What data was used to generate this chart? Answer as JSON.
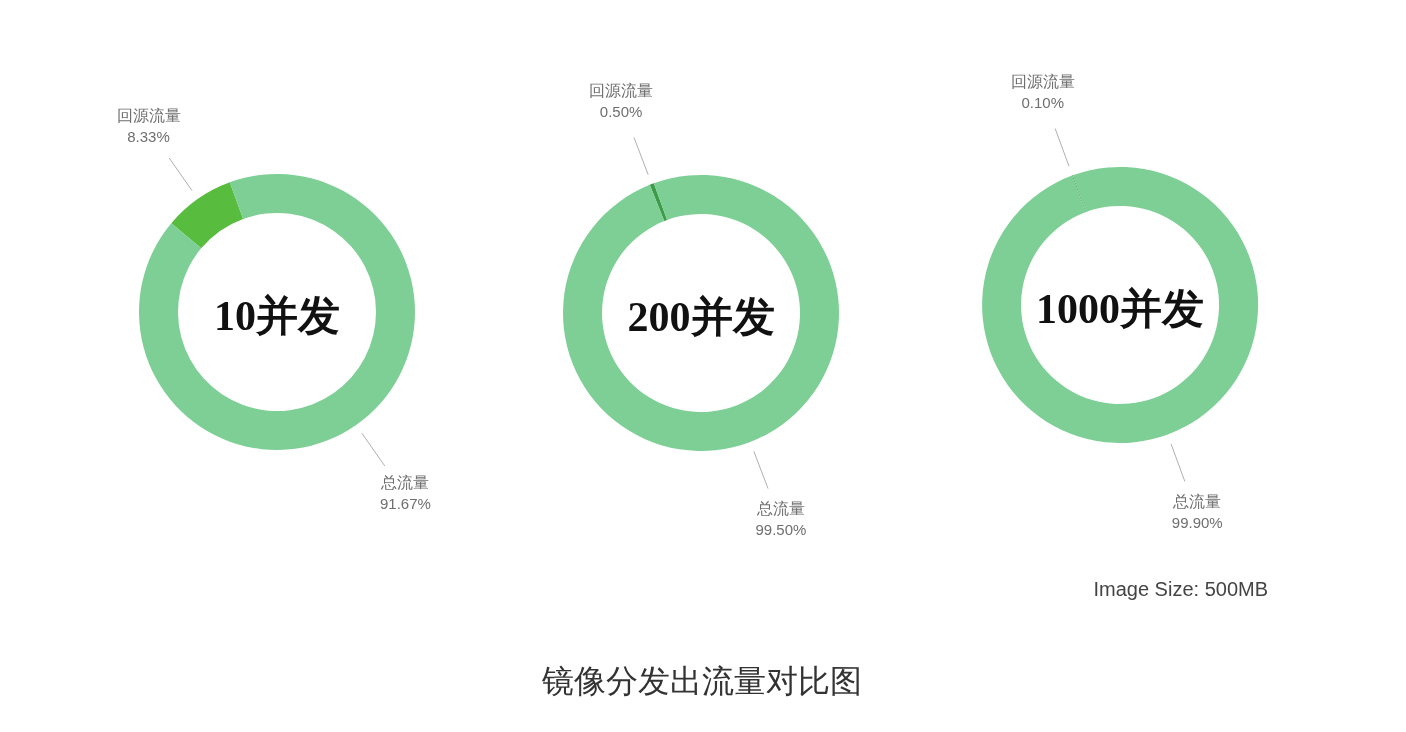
{
  "chart_data": [
    {
      "type": "donut",
      "title": "10并发",
      "categories": [
        "回源流量",
        "总流量"
      ],
      "values": [
        8.33,
        91.67
      ],
      "colors": [
        "#58bc3e",
        "#7dcf95"
      ],
      "value_labels": [
        "8.33%",
        "91.67%"
      ]
    },
    {
      "type": "donut",
      "title": "200并发",
      "categories": [
        "回源流量",
        "总流量"
      ],
      "values": [
        0.5,
        99.5
      ],
      "colors": [
        "#3c9c47",
        "#7dcf95"
      ],
      "value_labels": [
        "0.50%",
        "99.50%"
      ],
      "annotations": [
        "镜像分发出流量对比图"
      ]
    },
    {
      "type": "donut",
      "title": "1000并发",
      "categories": [
        "回源流量",
        "总流量"
      ],
      "values": [
        0.1,
        99.9
      ],
      "colors": [
        "#3c9c47",
        "#7dcf95"
      ],
      "value_labels": [
        "0.10%",
        "99.90%"
      ],
      "annotations": [
        "Image Size: 500MB"
      ]
    }
  ]
}
